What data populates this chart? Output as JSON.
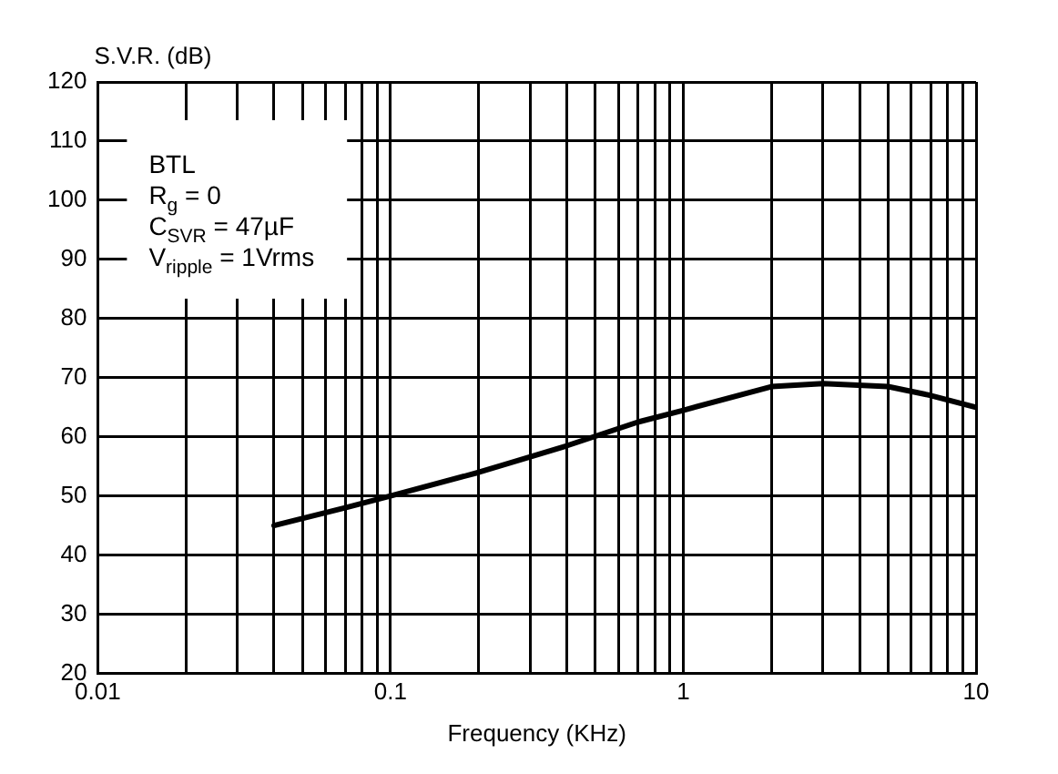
{
  "chart_data": {
    "type": "line",
    "xlabel": "Frequency (KHz)",
    "ylabel": "S.V.R. (dB)",
    "log": "x",
    "grid": true,
    "legend": false,
    "marker": "none",
    "line_style": "solid",
    "xlim": [
      0.01,
      10
    ],
    "ylim": [
      20,
      120
    ],
    "xticks": [
      0.01,
      {
        "value": 0.02,
        "label": null
      },
      {
        "value": 0.03,
        "label": null
      },
      {
        "value": 0.04,
        "label": null
      },
      {
        "value": 0.05,
        "label": null
      },
      {
        "value": 0.06,
        "label": null
      },
      {
        "value": 0.07,
        "label": null
      },
      {
        "value": 0.08,
        "label": null
      },
      {
        "value": 0.09,
        "label": null
      },
      0.1,
      {
        "value": 0.2,
        "label": null
      },
      {
        "value": 0.3,
        "label": null
      },
      {
        "value": 0.4,
        "label": null
      },
      {
        "value": 0.5,
        "label": null
      },
      {
        "value": 0.6,
        "label": null
      },
      {
        "value": 0.7,
        "label": null
      },
      {
        "value": 0.8,
        "label": null
      },
      {
        "value": 0.9,
        "label": null
      },
      1,
      {
        "value": 2,
        "label": null
      },
      {
        "value": 3,
        "label": null
      },
      {
        "value": 4,
        "label": null
      },
      {
        "value": 5,
        "label": null
      },
      {
        "value": 6,
        "label": null
      },
      {
        "value": 7,
        "label": null
      },
      {
        "value": 8,
        "label": null
      },
      {
        "value": 9,
        "label": null
      },
      10
    ],
    "yticks": [
      20,
      30,
      40,
      50,
      60,
      70,
      80,
      90,
      100,
      110,
      120
    ],
    "annotations": [
      "BTL",
      "R$_{g}$ = 0",
      "C$_{SVR}$ = 47µF",
      "V$_{ripple}$ = 1Vrms"
    ],
    "series": [
      {
        "color": "#000000",
        "x": [
          0.04,
          0.07,
          0.1,
          0.2,
          0.4,
          0.7,
          1,
          2,
          3,
          5,
          7,
          10
        ],
        "values": [
          45,
          48,
          50,
          54,
          58.5,
          62.5,
          64.5,
          68.5,
          69,
          68.5,
          67,
          65
        ]
      }
    ]
  }
}
